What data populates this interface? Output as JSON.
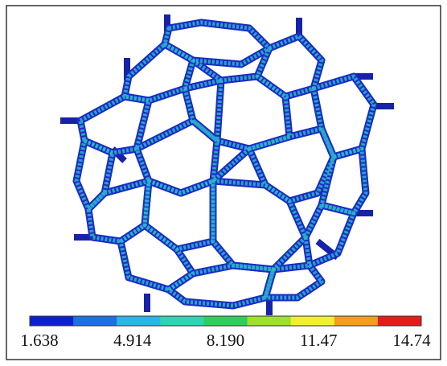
{
  "colorbar": {
    "labels": [
      "1.638",
      "4.914",
      "8.190",
      "11.47",
      "14.74"
    ],
    "colors": [
      "#0a1fd6",
      "#1d6fe8",
      "#25b8e6",
      "#2ad6b4",
      "#2bcf5a",
      "#9ee02a",
      "#f2f02a",
      "#f59e1a",
      "#e81a1a"
    ]
  }
}
